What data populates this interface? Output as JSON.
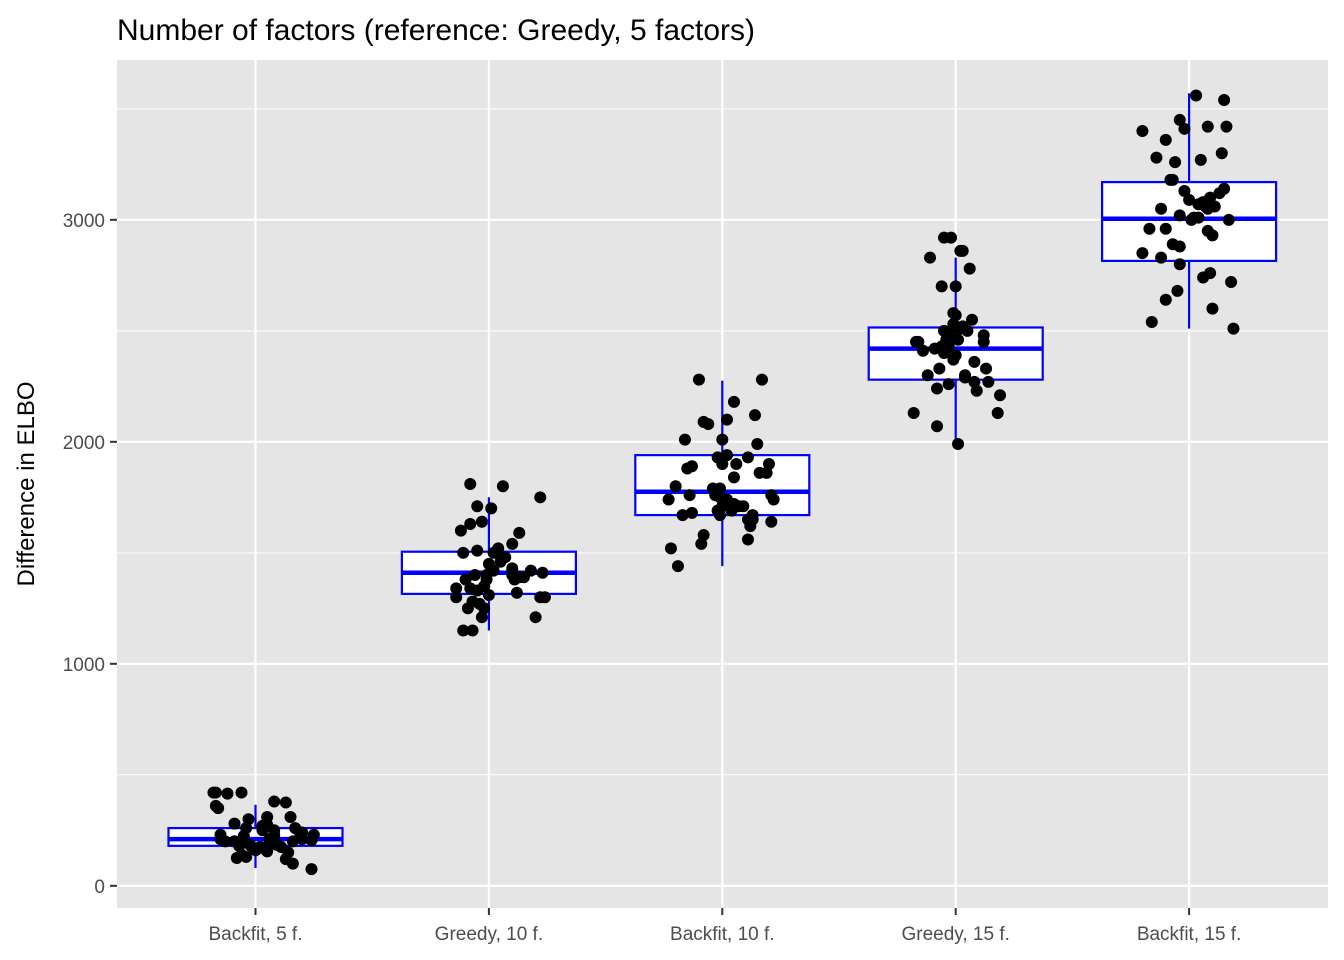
{
  "chart_data": {
    "type": "box",
    "title": "Number of factors (reference: Greedy, 5 factors)",
    "xlabel": "",
    "ylabel": "Difference in ELBO",
    "ylim": [
      -100,
      3720
    ],
    "yticks": [
      0,
      1000,
      2000,
      3000
    ],
    "grid": true,
    "legend": "none",
    "categories": [
      "Backfit, 5 f.",
      "Greedy, 10 f.",
      "Backfit, 10 f.",
      "Greedy, 15 f.",
      "Backfit, 15 f."
    ],
    "box_color": "#0000ff",
    "point_color": "#000000",
    "panel_background": "#e5e5e5",
    "boxes": [
      {
        "category": "Backfit, 5 f.",
        "q1": 180,
        "median": 210,
        "q3": 260,
        "whisker_low": 80,
        "whisker_high": 365
      },
      {
        "category": "Greedy, 10 f.",
        "q1": 1315,
        "median": 1410,
        "q3": 1505,
        "whisker_low": 1150,
        "whisker_high": 1750
      },
      {
        "category": "Backfit, 10 f.",
        "q1": 1670,
        "median": 1775,
        "q3": 1940,
        "whisker_low": 1440,
        "whisker_high": 2275
      },
      {
        "category": "Greedy, 15 f.",
        "q1": 2280,
        "median": 2420,
        "q3": 2515,
        "whisker_low": 1990,
        "whisker_high": 2830
      },
      {
        "category": "Backfit, 15 f.",
        "q1": 2815,
        "median": 3005,
        "q3": 3170,
        "whisker_low": 2510,
        "whisker_high": 3570
      }
    ],
    "points": [
      {
        "category": "Backfit, 5 f.",
        "x": [
          1.24,
          0.82,
          0.83,
          0.88,
          0.94,
          1.08,
          1.13,
          0.83,
          0.84,
          0.97,
          1.05,
          1.15,
          0.91,
          0.96,
          1.17,
          1.03,
          1.08,
          1.03,
          1.19,
          0.85,
          1.08,
          1.25,
          0.85,
          0.87,
          0.91,
          0.96,
          1.06,
          1.16,
          0.98,
          0.93,
          1.02,
          1.11,
          1.2,
          1.24,
          1.0,
          1.05,
          1.14,
          0.94,
          0.92,
          1.13,
          1.16,
          1.06,
          1.08,
          1.09,
          1.02,
          0.95,
          0.96,
          0.91,
          1.05,
          1.2
        ],
        "y": [
          75,
          420,
          420,
          415,
          420,
          380,
          375,
          360,
          350,
          300,
          310,
          310,
          280,
          260,
          260,
          270,
          250,
          250,
          240,
          230,
          230,
          230,
          210,
          200,
          200,
          195,
          210,
          200,
          180,
          180,
          175,
          175,
          210,
          205,
          160,
          155,
          150,
          140,
          125,
          120,
          100,
          190,
          215,
          185,
          170,
          225,
          130,
          200,
          275,
          240
        ]
      },
      {
        "category": "Greedy, 10 f.",
        "x": [
          1.89,
          1.93,
          1.96,
          1.91,
          2.24,
          1.86,
          1.92,
          1.95,
          2.12,
          1.9,
          2.22,
          1.94,
          1.99,
          2.15,
          1.98,
          1.86,
          1.97,
          1.89,
          2.0,
          2.1,
          2.1,
          2.02,
          2.04,
          2.07,
          2.13,
          2.22,
          1.97,
          2.06,
          1.92,
          2.01,
          2.1,
          2.23,
          2.2,
          1.98,
          1.95,
          2.11,
          1.99,
          1.88,
          2.02,
          2.18,
          2.0,
          2.05,
          2.1,
          1.92,
          1.95,
          2.03,
          1.93,
          2.13
        ],
        "y": [
          1150,
          1150,
          1270,
          1250,
          1300,
          1300,
          1340,
          1330,
          1320,
          1380,
          1300,
          1400,
          1400,
          1390,
          1250,
          1340,
          1210,
          1500,
          1450,
          1420,
          1430,
          1500,
          1520,
          1480,
          1590,
          1750,
          1640,
          1800,
          1810,
          1700,
          1540,
          1410,
          1210,
          1350,
          1510,
          1380,
          1380,
          1600,
          1420,
          1420,
          1310,
          1460,
          1400,
          1630,
          1710,
          1500,
          1280,
          1390
        ]
      },
      {
        "category": "Backfit, 10 f.",
        "x": [
          2.81,
          2.78,
          2.91,
          2.92,
          3.11,
          3.21,
          2.83,
          2.77,
          2.99,
          2.98,
          3.13,
          3.12,
          3.22,
          3.0,
          2.97,
          2.86,
          2.8,
          3.21,
          2.96,
          2.99,
          3.05,
          3.16,
          3.2,
          3.06,
          3.19,
          3.11,
          3.02,
          2.98,
          2.85,
          2.87,
          3.0,
          3.15,
          3.07,
          3.04,
          3.02,
          2.87,
          2.99,
          3.13,
          3.05,
          3.09,
          2.94,
          2.92,
          3.14,
          3.05,
          3.17,
          3.02,
          2.9,
          3.0,
          2.84,
          3.11
        ],
        "y": [
          1440,
          1520,
          1540,
          1580,
          1560,
          1640,
          1670,
          1740,
          1670,
          1690,
          1650,
          1620,
          1740,
          1710,
          1760,
          1760,
          1800,
          1760,
          1790,
          1790,
          1840,
          1860,
          1900,
          1900,
          1860,
          1930,
          1940,
          1930,
          1880,
          1890,
          2010,
          1990,
          1710,
          1690,
          1740,
          1680,
          1750,
          1670,
          1720,
          1710,
          2080,
          2090,
          2120,
          2180,
          2280,
          2100,
          2280,
          1900,
          2010,
          1650
        ]
      },
      {
        "category": "Greedy, 15 f.",
        "x": [
          4.01,
          3.92,
          4.18,
          3.82,
          4.09,
          4.19,
          4.14,
          3.92,
          4.08,
          4.13,
          4.04,
          3.97,
          3.88,
          4.04,
          3.93,
          3.99,
          3.95,
          3.91,
          4.0,
          4.08,
          3.96,
          3.94,
          4.12,
          3.97,
          3.86,
          4.01,
          3.95,
          3.84,
          4.05,
          3.98,
          4.02,
          3.96,
          3.99,
          4.07,
          3.99,
          4.03,
          4.0,
          3.99,
          3.94,
          4.12,
          4.0,
          3.94,
          3.89,
          4.03,
          4.06,
          3.95,
          3.98,
          4.02,
          3.83
        ],
        "y": [
          1990,
          2070,
          2130,
          2130,
          2230,
          2210,
          2270,
          2240,
          2270,
          2330,
          2290,
          2260,
          2300,
          2300,
          2330,
          2370,
          2400,
          2420,
          2390,
          2360,
          2420,
          2430,
          2450,
          2430,
          2410,
          2460,
          2500,
          2450,
          2500,
          2480,
          2510,
          2460,
          2510,
          2550,
          2530,
          2520,
          2570,
          2580,
          2420,
          2480,
          2700,
          2700,
          2830,
          2860,
          2780,
          2920,
          2920,
          2860,
          2450
        ]
      },
      {
        "category": "Backfit, 15 f.",
        "x": [
          5.19,
          4.84,
          5.1,
          4.9,
          4.95,
          5.06,
          5.18,
          4.96,
          4.88,
          4.96,
          5.09,
          4.8,
          4.93,
          5.08,
          4.83,
          5.1,
          4.9,
          5.02,
          4.96,
          4.88,
          5.01,
          5.04,
          5.08,
          5.07,
          5.17,
          5.09,
          5.04,
          5.13,
          5.06,
          5.0,
          5.15,
          4.98,
          4.92,
          4.86,
          5.05,
          5.14,
          4.94,
          4.9,
          4.98,
          4.96,
          5.03,
          5.15,
          5.08,
          5.16,
          4.8,
          4.93,
          5.11
        ],
        "y": [
          2510,
          2540,
          2600,
          2640,
          2680,
          2740,
          2720,
          2800,
          2830,
          2880,
          2760,
          2850,
          2890,
          2950,
          2960,
          2930,
          2960,
          3010,
          3020,
          3050,
          3000,
          3010,
          3050,
          3060,
          3000,
          3100,
          3070,
          3120,
          3080,
          3090,
          3140,
          3130,
          3180,
          3280,
          3270,
          3300,
          3260,
          3360,
          3410,
          3450,
          3560,
          3540,
          3420,
          3420,
          3400,
          3180,
          3060
        ]
      }
    ]
  }
}
